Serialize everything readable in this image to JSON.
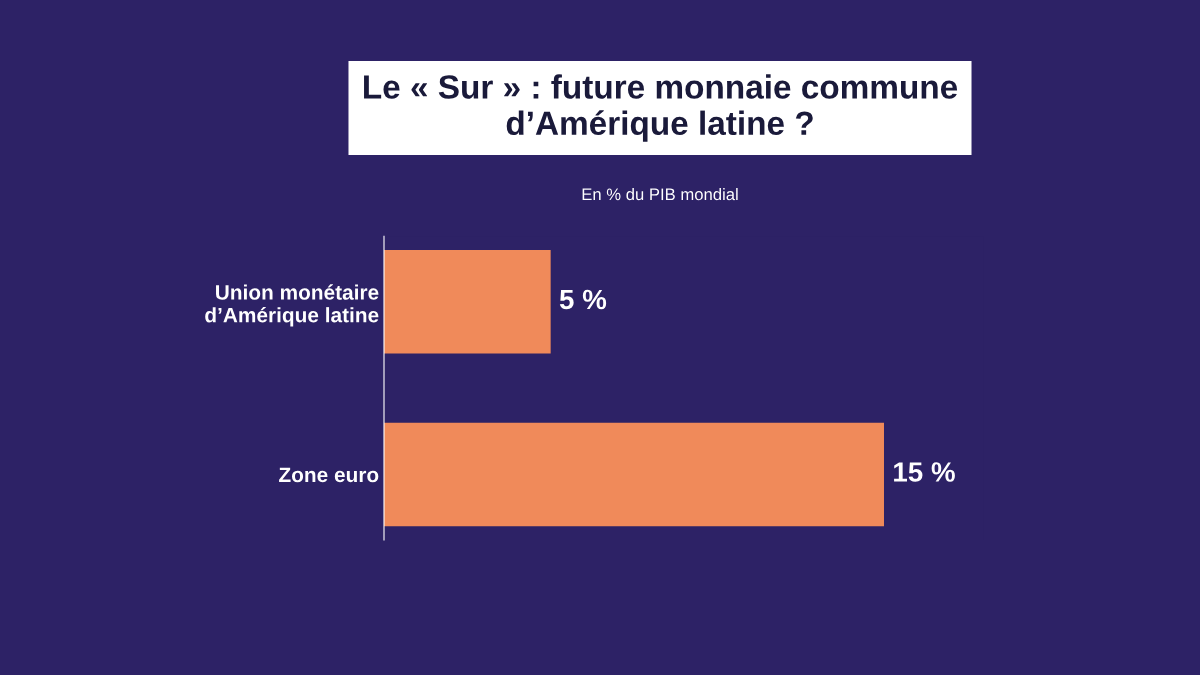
{
  "chart_data": {
    "type": "bar",
    "orientation": "horizontal",
    "title": "Le « Sur » : future monnaie commune\nd’Amérique latine ?",
    "subtitle": "En % du PIB mondial",
    "categories": [
      "Union monétaire\nd’Amérique latine",
      "Zone euro"
    ],
    "values": [
      5,
      15
    ],
    "color": "#f08a5a",
    "value_labels": [
      "5 %",
      "15 %"
    ],
    "grid": false,
    "legend": false
  }
}
